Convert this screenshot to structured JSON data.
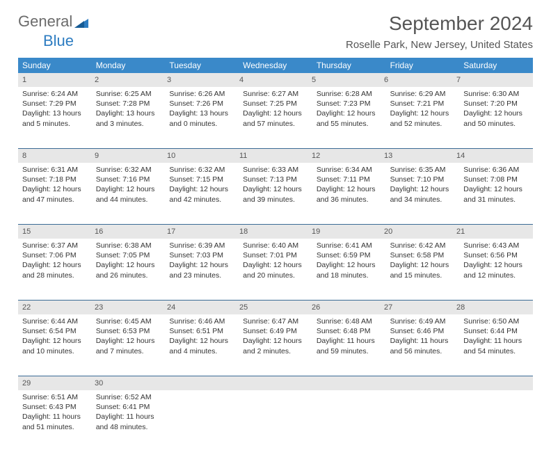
{
  "logo": {
    "part1": "General",
    "part2": "Blue"
  },
  "title": "September 2024",
  "location": "Roselle Park, New Jersey, United States",
  "colors": {
    "header_bg": "#3a89c9",
    "header_text": "#ffffff",
    "daynum_bg": "#e7e7e7",
    "week_border": "#3a6b95",
    "logo_gray": "#6b6b6b",
    "logo_blue": "#2d7cc1",
    "text": "#333333",
    "title_color": "#555555"
  },
  "dow": [
    "Sunday",
    "Monday",
    "Tuesday",
    "Wednesday",
    "Thursday",
    "Friday",
    "Saturday"
  ],
  "weeks": [
    {
      "nums": [
        "1",
        "2",
        "3",
        "4",
        "5",
        "6",
        "7"
      ],
      "cells": [
        {
          "sunrise": "Sunrise: 6:24 AM",
          "sunset": "Sunset: 7:29 PM",
          "day1": "Daylight: 13 hours",
          "day2": "and 5 minutes."
        },
        {
          "sunrise": "Sunrise: 6:25 AM",
          "sunset": "Sunset: 7:28 PM",
          "day1": "Daylight: 13 hours",
          "day2": "and 3 minutes."
        },
        {
          "sunrise": "Sunrise: 6:26 AM",
          "sunset": "Sunset: 7:26 PM",
          "day1": "Daylight: 13 hours",
          "day2": "and 0 minutes."
        },
        {
          "sunrise": "Sunrise: 6:27 AM",
          "sunset": "Sunset: 7:25 PM",
          "day1": "Daylight: 12 hours",
          "day2": "and 57 minutes."
        },
        {
          "sunrise": "Sunrise: 6:28 AM",
          "sunset": "Sunset: 7:23 PM",
          "day1": "Daylight: 12 hours",
          "day2": "and 55 minutes."
        },
        {
          "sunrise": "Sunrise: 6:29 AM",
          "sunset": "Sunset: 7:21 PM",
          "day1": "Daylight: 12 hours",
          "day2": "and 52 minutes."
        },
        {
          "sunrise": "Sunrise: 6:30 AM",
          "sunset": "Sunset: 7:20 PM",
          "day1": "Daylight: 12 hours",
          "day2": "and 50 minutes."
        }
      ]
    },
    {
      "nums": [
        "8",
        "9",
        "10",
        "11",
        "12",
        "13",
        "14"
      ],
      "cells": [
        {
          "sunrise": "Sunrise: 6:31 AM",
          "sunset": "Sunset: 7:18 PM",
          "day1": "Daylight: 12 hours",
          "day2": "and 47 minutes."
        },
        {
          "sunrise": "Sunrise: 6:32 AM",
          "sunset": "Sunset: 7:16 PM",
          "day1": "Daylight: 12 hours",
          "day2": "and 44 minutes."
        },
        {
          "sunrise": "Sunrise: 6:32 AM",
          "sunset": "Sunset: 7:15 PM",
          "day1": "Daylight: 12 hours",
          "day2": "and 42 minutes."
        },
        {
          "sunrise": "Sunrise: 6:33 AM",
          "sunset": "Sunset: 7:13 PM",
          "day1": "Daylight: 12 hours",
          "day2": "and 39 minutes."
        },
        {
          "sunrise": "Sunrise: 6:34 AM",
          "sunset": "Sunset: 7:11 PM",
          "day1": "Daylight: 12 hours",
          "day2": "and 36 minutes."
        },
        {
          "sunrise": "Sunrise: 6:35 AM",
          "sunset": "Sunset: 7:10 PM",
          "day1": "Daylight: 12 hours",
          "day2": "and 34 minutes."
        },
        {
          "sunrise": "Sunrise: 6:36 AM",
          "sunset": "Sunset: 7:08 PM",
          "day1": "Daylight: 12 hours",
          "day2": "and 31 minutes."
        }
      ]
    },
    {
      "nums": [
        "15",
        "16",
        "17",
        "18",
        "19",
        "20",
        "21"
      ],
      "cells": [
        {
          "sunrise": "Sunrise: 6:37 AM",
          "sunset": "Sunset: 7:06 PM",
          "day1": "Daylight: 12 hours",
          "day2": "and 28 minutes."
        },
        {
          "sunrise": "Sunrise: 6:38 AM",
          "sunset": "Sunset: 7:05 PM",
          "day1": "Daylight: 12 hours",
          "day2": "and 26 minutes."
        },
        {
          "sunrise": "Sunrise: 6:39 AM",
          "sunset": "Sunset: 7:03 PM",
          "day1": "Daylight: 12 hours",
          "day2": "and 23 minutes."
        },
        {
          "sunrise": "Sunrise: 6:40 AM",
          "sunset": "Sunset: 7:01 PM",
          "day1": "Daylight: 12 hours",
          "day2": "and 20 minutes."
        },
        {
          "sunrise": "Sunrise: 6:41 AM",
          "sunset": "Sunset: 6:59 PM",
          "day1": "Daylight: 12 hours",
          "day2": "and 18 minutes."
        },
        {
          "sunrise": "Sunrise: 6:42 AM",
          "sunset": "Sunset: 6:58 PM",
          "day1": "Daylight: 12 hours",
          "day2": "and 15 minutes."
        },
        {
          "sunrise": "Sunrise: 6:43 AM",
          "sunset": "Sunset: 6:56 PM",
          "day1": "Daylight: 12 hours",
          "day2": "and 12 minutes."
        }
      ]
    },
    {
      "nums": [
        "22",
        "23",
        "24",
        "25",
        "26",
        "27",
        "28"
      ],
      "cells": [
        {
          "sunrise": "Sunrise: 6:44 AM",
          "sunset": "Sunset: 6:54 PM",
          "day1": "Daylight: 12 hours",
          "day2": "and 10 minutes."
        },
        {
          "sunrise": "Sunrise: 6:45 AM",
          "sunset": "Sunset: 6:53 PM",
          "day1": "Daylight: 12 hours",
          "day2": "and 7 minutes."
        },
        {
          "sunrise": "Sunrise: 6:46 AM",
          "sunset": "Sunset: 6:51 PM",
          "day1": "Daylight: 12 hours",
          "day2": "and 4 minutes."
        },
        {
          "sunrise": "Sunrise: 6:47 AM",
          "sunset": "Sunset: 6:49 PM",
          "day1": "Daylight: 12 hours",
          "day2": "and 2 minutes."
        },
        {
          "sunrise": "Sunrise: 6:48 AM",
          "sunset": "Sunset: 6:48 PM",
          "day1": "Daylight: 11 hours",
          "day2": "and 59 minutes."
        },
        {
          "sunrise": "Sunrise: 6:49 AM",
          "sunset": "Sunset: 6:46 PM",
          "day1": "Daylight: 11 hours",
          "day2": "and 56 minutes."
        },
        {
          "sunrise": "Sunrise: 6:50 AM",
          "sunset": "Sunset: 6:44 PM",
          "day1": "Daylight: 11 hours",
          "day2": "and 54 minutes."
        }
      ]
    },
    {
      "nums": [
        "29",
        "30",
        "",
        "",
        "",
        "",
        ""
      ],
      "cells": [
        {
          "sunrise": "Sunrise: 6:51 AM",
          "sunset": "Sunset: 6:43 PM",
          "day1": "Daylight: 11 hours",
          "day2": "and 51 minutes."
        },
        {
          "sunrise": "Sunrise: 6:52 AM",
          "sunset": "Sunset: 6:41 PM",
          "day1": "Daylight: 11 hours",
          "day2": "and 48 minutes."
        },
        {
          "sunrise": "",
          "sunset": "",
          "day1": "",
          "day2": ""
        },
        {
          "sunrise": "",
          "sunset": "",
          "day1": "",
          "day2": ""
        },
        {
          "sunrise": "",
          "sunset": "",
          "day1": "",
          "day2": ""
        },
        {
          "sunrise": "",
          "sunset": "",
          "day1": "",
          "day2": ""
        },
        {
          "sunrise": "",
          "sunset": "",
          "day1": "",
          "day2": ""
        }
      ]
    }
  ]
}
